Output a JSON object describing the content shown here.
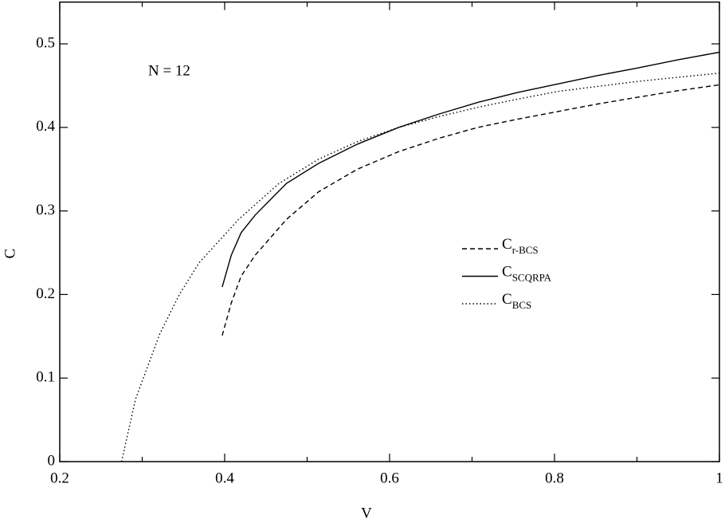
{
  "chart_data": {
    "type": "line",
    "x_label": "V",
    "y_label": "C",
    "annotation": "N = 12",
    "xlim": [
      0.2,
      1
    ],
    "ylim": [
      0,
      0.55
    ],
    "xticks": [
      0.2,
      0.4,
      0.6,
      0.8,
      1
    ],
    "xminorticks": [
      0.3,
      0.5,
      0.7,
      0.9
    ],
    "yticks": [
      0,
      0.1,
      0.2,
      0.3,
      0.4,
      0.5
    ],
    "series": [
      {
        "name": "Cr-BCS",
        "color": "#000",
        "dash": "6,4",
        "x": [
          0.397,
          0.408,
          0.42,
          0.437,
          0.475,
          0.514,
          0.561,
          0.611,
          0.66,
          0.707,
          0.756,
          0.804,
          0.852,
          0.9,
          0.95,
          1.0
        ],
        "values": [
          0.151,
          0.19,
          0.222,
          0.247,
          0.29,
          0.323,
          0.35,
          0.371,
          0.387,
          0.4,
          0.41,
          0.419,
          0.428,
          0.436,
          0.444,
          0.451
        ]
      },
      {
        "name": "CSCQRPA",
        "color": "#000",
        "dash": "none",
        "x": [
          0.397,
          0.408,
          0.42,
          0.437,
          0.475,
          0.514,
          0.561,
          0.611,
          0.66,
          0.707,
          0.756,
          0.804,
          0.852,
          0.9,
          0.95,
          1.0
        ],
        "values": [
          0.209,
          0.247,
          0.274,
          0.295,
          0.333,
          0.357,
          0.38,
          0.4,
          0.416,
          0.43,
          0.442,
          0.452,
          0.462,
          0.471,
          0.481,
          0.49
        ]
      },
      {
        "name": "CBCS",
        "color": "#000",
        "dash": "1.5,3",
        "x": [
          0.275,
          0.292,
          0.321,
          0.345,
          0.369,
          0.417,
          0.466,
          0.514,
          0.561,
          0.611,
          0.66,
          0.707,
          0.756,
          0.804,
          0.852,
          0.9,
          0.95,
          1.0
        ],
        "values": [
          0,
          0.075,
          0.152,
          0.2,
          0.238,
          0.29,
          0.333,
          0.362,
          0.383,
          0.4,
          0.413,
          0.424,
          0.434,
          0.443,
          0.449,
          0.455,
          0.46,
          0.465
        ]
      }
    ]
  }
}
